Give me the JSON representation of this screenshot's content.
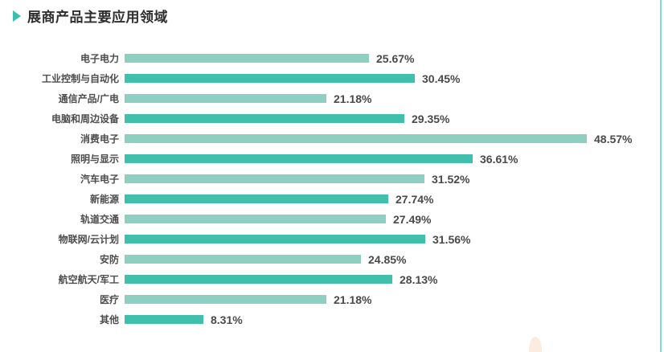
{
  "header": {
    "title": "展商产品主要应用领域"
  },
  "chart_data": {
    "type": "bar",
    "orientation": "horizontal",
    "title": "展商产品主要应用领域",
    "categories": [
      "电子电力",
      "工业控制与自动化",
      "通信产品/广电",
      "电脑和周边设备",
      "消费电子",
      "照明与显示",
      "汽车电子",
      "新能源",
      "轨道交通",
      "物联网/云计划",
      "安防",
      "航空航天/军工",
      "医疗",
      "其他"
    ],
    "values": [
      25.67,
      30.45,
      21.18,
      29.35,
      48.57,
      36.61,
      31.52,
      27.74,
      27.49,
      31.56,
      24.85,
      28.13,
      21.18,
      8.31
    ],
    "value_suffix": "%",
    "xlim": [
      0,
      52
    ],
    "grid": false,
    "legend": "none",
    "value_label_position": "end-of-bar",
    "bar_colors_alternate": [
      "#8DCFC0",
      "#3FBFAC"
    ]
  },
  "colors": {
    "title_marker": "#3CBFAD",
    "bar_light": "#8DCFC0",
    "bar_dark": "#3FBFAC",
    "right_divider": "#7EDAD2",
    "decor_blob": "#FCEBDF"
  }
}
